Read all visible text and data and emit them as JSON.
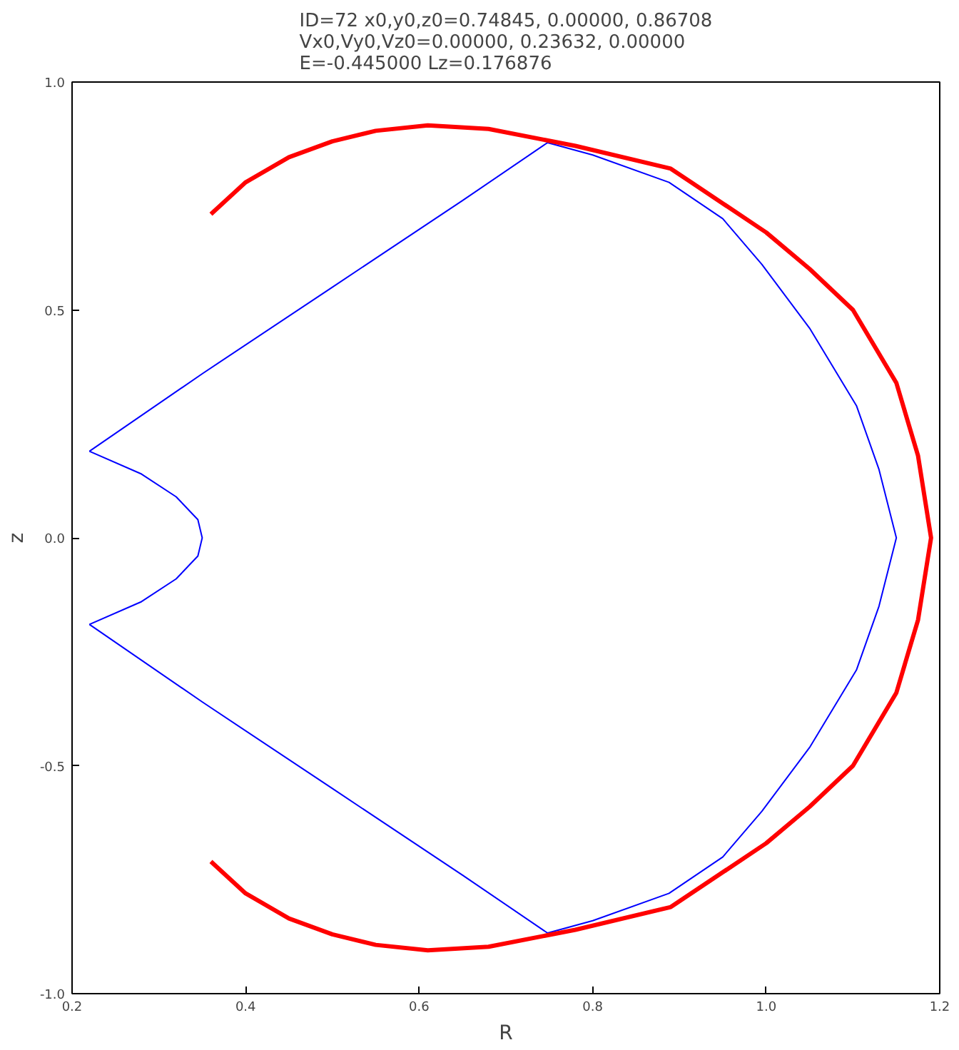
{
  "chart_data": {
    "type": "line",
    "title": "ID=72 x0,y0,z0=0.74845, 0.00000, 0.86708\nVx0,Vy0,Vz0=0.00000, 0.23632, 0.00000\nE=-0.445000 Lz=0.176876",
    "xlabel": "R",
    "ylabel": "z",
    "xlim": [
      0.2,
      1.2
    ],
    "ylim": [
      -1.0,
      1.0
    ],
    "xticks": [
      0.2,
      0.4,
      0.6,
      0.8,
      {
        "value": 1.0,
        "label": "1.0"
      },
      1.2
    ],
    "yticks": [
      {
        "value": -1.0,
        "label": "-1.0"
      },
      -0.5,
      {
        "value": 0.0,
        "label": "0.0"
      },
      0.5,
      {
        "value": 1.0,
        "label": "1.0"
      }
    ],
    "grid": false,
    "marker": "none",
    "line_style": "solid",
    "series": [
      {
        "color": "#0000ff",
        "x": [
          0.22,
          0.35,
          0.5,
          0.65,
          0.748,
          0.8,
          0.888,
          0.95,
          0.995,
          1.05,
          1.104,
          1.13,
          1.15,
          1.13,
          1.104,
          1.05,
          0.995,
          0.95,
          0.888,
          0.8,
          0.748,
          0.65,
          0.5,
          0.35,
          0.22
        ],
        "values": [
          0.19,
          0.36,
          0.55,
          0.74,
          0.867,
          0.84,
          0.78,
          0.7,
          0.6,
          0.46,
          0.29,
          0.15,
          0.0,
          -0.15,
          -0.29,
          -0.46,
          -0.6,
          -0.7,
          -0.78,
          -0.84,
          -0.867,
          -0.74,
          -0.55,
          -0.36,
          -0.19
        ]
      },
      {
        "color": "#0000ff",
        "x": [
          0.22,
          0.28,
          0.32,
          0.345,
          0.35,
          0.345,
          0.32,
          0.28,
          0.22
        ],
        "values": [
          0.19,
          0.14,
          0.09,
          0.04,
          0.0,
          -0.04,
          -0.09,
          -0.14,
          -0.19
        ]
      },
      {
        "color": "#ff0000",
        "x": [
          0.36,
          0.4,
          0.45,
          0.5,
          0.55,
          0.61,
          0.68,
          0.78,
          0.89,
          1.0,
          1.05,
          1.1,
          1.15,
          1.175,
          1.19,
          1.175,
          1.15,
          1.1,
          1.05,
          1.0,
          0.89,
          0.78,
          0.68,
          0.61,
          0.55,
          0.5,
          0.45,
          0.4,
          0.36
        ],
        "values": [
          0.71,
          0.78,
          0.835,
          0.87,
          0.893,
          0.905,
          0.897,
          0.86,
          0.81,
          0.67,
          0.59,
          0.5,
          0.34,
          0.18,
          0.0,
          -0.18,
          -0.34,
          -0.5,
          -0.59,
          -0.67,
          -0.81,
          -0.86,
          -0.897,
          -0.905,
          -0.893,
          -0.87,
          -0.835,
          -0.78,
          -0.71
        ]
      }
    ]
  }
}
